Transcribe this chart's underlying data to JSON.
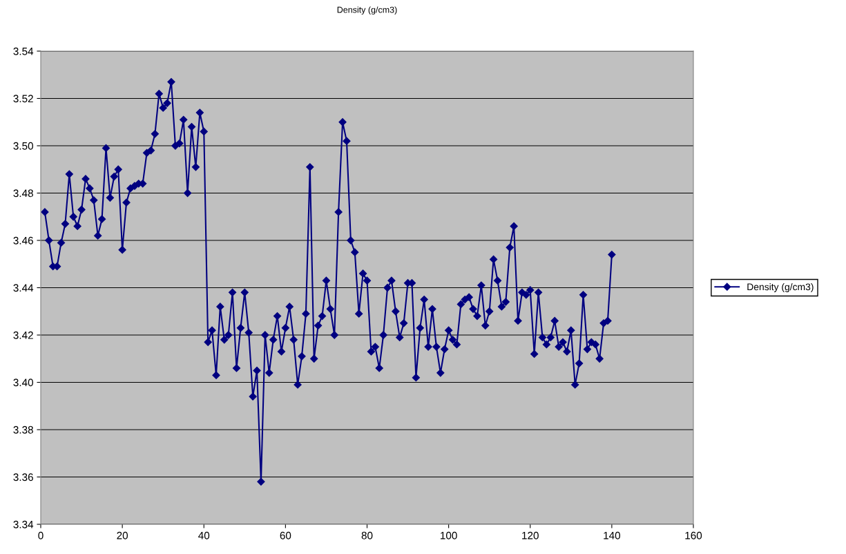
{
  "chart_data": {
    "type": "line",
    "title": "Density (g/cm3)",
    "x": [
      1,
      2,
      3,
      4,
      5,
      6,
      7,
      8,
      9,
      10,
      11,
      12,
      13,
      14,
      15,
      16,
      17,
      18,
      19,
      20,
      21,
      22,
      23,
      24,
      25,
      26,
      27,
      28,
      29,
      30,
      31,
      32,
      33,
      34,
      35,
      36,
      37,
      38,
      39,
      40,
      41,
      42,
      43,
      44,
      45,
      46,
      47,
      48,
      49,
      50,
      51,
      52,
      53,
      54,
      55,
      56,
      57,
      58,
      59,
      60,
      61,
      62,
      63,
      64,
      65,
      66,
      67,
      68,
      69,
      70,
      71,
      72,
      73,
      74,
      75,
      76,
      77,
      78,
      79,
      80,
      81,
      82,
      83,
      84,
      85,
      86,
      87,
      88,
      89,
      90,
      91,
      92,
      93,
      94,
      95,
      96,
      97,
      98,
      99,
      100,
      101,
      102,
      103,
      104,
      105,
      106,
      107,
      108,
      109,
      110,
      111,
      112,
      113,
      114,
      115,
      116,
      117,
      118,
      119,
      120,
      121,
      122,
      123,
      124,
      125,
      126,
      127,
      128,
      129,
      130,
      131,
      132,
      133,
      134,
      135,
      136,
      137,
      138,
      139,
      140
    ],
    "series": [
      {
        "name": "Density (g/cm3)",
        "color": "#000080",
        "values": [
          3.472,
          3.46,
          3.449,
          3.449,
          3.459,
          3.467,
          3.488,
          3.47,
          3.466,
          3.473,
          3.486,
          3.482,
          3.477,
          3.462,
          3.469,
          3.499,
          3.478,
          3.487,
          3.49,
          3.456,
          3.476,
          3.482,
          3.483,
          3.484,
          3.484,
          3.497,
          3.498,
          3.505,
          3.522,
          3.516,
          3.518,
          3.527,
          3.5,
          3.501,
          3.511,
          3.48,
          3.508,
          3.491,
          3.514,
          3.506,
          3.417,
          3.422,
          3.403,
          3.432,
          3.418,
          3.42,
          3.438,
          3.406,
          3.423,
          3.438,
          3.421,
          3.394,
          3.405,
          3.358,
          3.42,
          3.404,
          3.418,
          3.428,
          3.413,
          3.423,
          3.432,
          3.418,
          3.399,
          3.411,
          3.429,
          3.491,
          3.41,
          3.424,
          3.428,
          3.443,
          3.431,
          3.42,
          3.472,
          3.51,
          3.502,
          3.46,
          3.455,
          3.429,
          3.446,
          3.443,
          3.413,
          3.415,
          3.406,
          3.42,
          3.44,
          3.443,
          3.43,
          3.419,
          3.425,
          3.442,
          3.442,
          3.402,
          3.423,
          3.435,
          3.415,
          3.431,
          3.415,
          3.404,
          3.414,
          3.422,
          3.418,
          3.416,
          3.433,
          3.435,
          3.436,
          3.431,
          3.428,
          3.441,
          3.424,
          3.43,
          3.452,
          3.443,
          3.432,
          3.434,
          3.457,
          3.466,
          3.426,
          3.438,
          3.437,
          3.439,
          3.412,
          3.438,
          3.419,
          3.416,
          3.419,
          3.426,
          3.415,
          3.417,
          3.413,
          3.422,
          3.399,
          3.408,
          3.437,
          3.414,
          3.417,
          3.416,
          3.41,
          3.425,
          3.426,
          3.454
        ]
      }
    ],
    "xlim": [
      0,
      160
    ],
    "xticks": [
      0,
      20,
      40,
      60,
      80,
      100,
      120,
      140,
      160
    ],
    "ylim": [
      3.34,
      3.54
    ],
    "yticks": [
      {
        "value": 3.34,
        "label": "3.34"
      },
      {
        "value": 3.36,
        "label": "3.36"
      },
      {
        "value": 3.38,
        "label": "3.38"
      },
      {
        "value": 3.4,
        "label": "3.40"
      },
      {
        "value": 3.42,
        "label": "3.42"
      },
      {
        "value": 3.44,
        "label": "3.44"
      },
      {
        "value": 3.46,
        "label": "3.46"
      },
      {
        "value": 3.48,
        "label": "3.48"
      },
      {
        "value": 3.5,
        "label": "3.50"
      },
      {
        "value": 3.52,
        "label": "3.52"
      },
      {
        "value": 3.54,
        "label": "3.54"
      }
    ],
    "grid": "y",
    "legend": "right",
    "marker": "diamond",
    "line_style": "solid"
  }
}
